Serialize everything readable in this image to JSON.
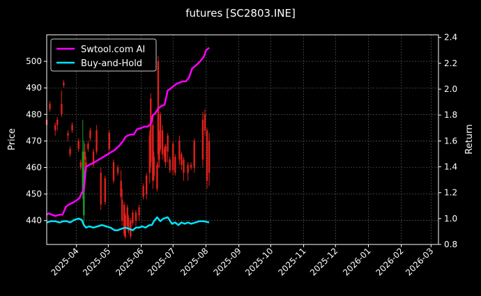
{
  "chart_data": {
    "type": "line",
    "title": "futures [SC2803.INE]",
    "ylabel": "Price",
    "y2label": "Return",
    "ylim": [
      431,
      510
    ],
    "y2lim": [
      0.8,
      2.42
    ],
    "xlim": [
      "2025-03-04",
      "2026-03-08"
    ],
    "yticks": [
      440,
      450,
      460,
      470,
      480,
      490,
      500
    ],
    "y2ticks": [
      "0.8",
      "1.0",
      "1.2",
      "1.4",
      "1.6",
      "1.8",
      "2.0",
      "2.2",
      "2.4"
    ],
    "xticks": [
      {
        "date": "2025-04-01",
        "label": "2025-04"
      },
      {
        "date": "2025-05-01",
        "label": "2025-05"
      },
      {
        "date": "2025-06-01",
        "label": "2025-06"
      },
      {
        "date": "2025-07-01",
        "label": "2025-07"
      },
      {
        "date": "2025-08-01",
        "label": "2025-08"
      },
      {
        "date": "2025-09-01",
        "label": "2025-09"
      },
      {
        "date": "2025-10-01",
        "label": "2025-10"
      },
      {
        "date": "2025-11-01",
        "label": "2025-11"
      },
      {
        "date": "2025-12-01",
        "label": "2025-12"
      },
      {
        "date": "2026-01-01",
        "label": "2026-01"
      },
      {
        "date": "2026-02-01",
        "label": "2026-02"
      },
      {
        "date": "2026-03-01",
        "label": "2026-03"
      }
    ],
    "grid": true,
    "legend_position": "top-left",
    "series": [
      {
        "name": "Swtool.com AI",
        "color": "#ff00ff",
        "axis": "right",
        "x": [
          "2025-03-04",
          "2025-03-06",
          "2025-03-09",
          "2025-03-12",
          "2025-03-16",
          "2025-03-19",
          "2025-03-22",
          "2025-03-25",
          "2025-03-28",
          "2025-04-01",
          "2025-04-04",
          "2025-04-06",
          "2025-04-08",
          "2025-04-10",
          "2025-04-12",
          "2025-04-14",
          "2025-04-17",
          "2025-04-21",
          "2025-04-25",
          "2025-04-29",
          "2025-05-03",
          "2025-05-07",
          "2025-05-11",
          "2025-05-15",
          "2025-05-17",
          "2025-05-19",
          "2025-05-22",
          "2025-05-25",
          "2025-05-28",
          "2025-06-01",
          "2025-06-04",
          "2025-06-07",
          "2025-06-10",
          "2025-06-12",
          "2025-06-14",
          "2025-06-17",
          "2025-06-20",
          "2025-06-23",
          "2025-06-26",
          "2025-06-28",
          "2025-07-01",
          "2025-07-04",
          "2025-07-07",
          "2025-07-10",
          "2025-07-13",
          "2025-07-16",
          "2025-07-19",
          "2025-07-22",
          "2025-07-26",
          "2025-07-30",
          "2025-08-01",
          "2025-08-04"
        ],
        "values": [
          1.03,
          1.04,
          1.03,
          1.02,
          1.03,
          1.03,
          1.09,
          1.11,
          1.12,
          1.14,
          1.16,
          1.2,
          1.22,
          1.4,
          1.41,
          1.42,
          1.43,
          1.45,
          1.47,
          1.49,
          1.51,
          1.53,
          1.56,
          1.6,
          1.63,
          1.64,
          1.65,
          1.65,
          1.69,
          1.7,
          1.71,
          1.71,
          1.73,
          1.8,
          1.81,
          1.85,
          1.87,
          1.88,
          1.99,
          2.0,
          2.02,
          2.04,
          2.05,
          2.06,
          2.06,
          2.09,
          2.16,
          2.18,
          2.21,
          2.25,
          2.3,
          2.32
        ]
      },
      {
        "name": "Buy-and-Hold",
        "color": "#00e5ff",
        "axis": "right",
        "x": [
          "2025-03-04",
          "2025-03-08",
          "2025-03-12",
          "2025-03-16",
          "2025-03-20",
          "2025-03-23",
          "2025-03-26",
          "2025-03-30",
          "2025-04-03",
          "2025-04-06",
          "2025-04-08",
          "2025-04-10",
          "2025-04-13",
          "2025-04-17",
          "2025-04-21",
          "2025-04-25",
          "2025-04-29",
          "2025-05-03",
          "2025-05-07",
          "2025-05-10",
          "2025-05-13",
          "2025-05-17",
          "2025-05-21",
          "2025-05-24",
          "2025-05-27",
          "2025-05-30",
          "2025-06-02",
          "2025-06-05",
          "2025-06-09",
          "2025-06-11",
          "2025-06-13",
          "2025-06-16",
          "2025-06-19",
          "2025-06-22",
          "2025-06-26",
          "2025-06-30",
          "2025-07-03",
          "2025-07-06",
          "2025-07-09",
          "2025-07-12",
          "2025-07-15",
          "2025-07-18",
          "2025-07-22",
          "2025-07-26",
          "2025-07-30",
          "2025-08-04"
        ],
        "values": [
          0.97,
          0.98,
          0.98,
          0.97,
          0.98,
          0.98,
          0.97,
          0.99,
          1.0,
          0.99,
          0.95,
          0.93,
          0.94,
          0.93,
          0.94,
          0.95,
          0.94,
          0.93,
          0.91,
          0.91,
          0.92,
          0.93,
          0.92,
          0.91,
          0.93,
          0.93,
          0.94,
          0.93,
          0.95,
          0.95,
          0.98,
          1.01,
          0.98,
          1.0,
          1.01,
          0.96,
          0.97,
          0.95,
          0.97,
          0.96,
          0.97,
          0.96,
          0.97,
          0.98,
          0.98,
          0.97
        ]
      }
    ],
    "candles": {
      "dates": [
        "2025-03-04",
        "2025-03-07",
        "2025-03-12",
        "2025-03-14",
        "2025-03-18",
        "2025-03-20",
        "2025-03-24",
        "2025-03-26",
        "2025-03-28",
        "2025-04-03",
        "2025-04-05",
        "2025-04-07",
        "2025-04-08",
        "2025-04-09",
        "2025-04-10",
        "2025-04-12",
        "2025-04-14",
        "2025-04-17",
        "2025-04-20",
        "2025-04-24",
        "2025-04-28",
        "2025-05-02",
        "2025-05-06",
        "2025-05-10",
        "2025-05-13",
        "2025-05-14",
        "2025-05-16",
        "2025-05-17",
        "2025-05-19",
        "2025-05-20",
        "2025-05-22",
        "2025-05-24",
        "2025-05-27",
        "2025-05-30",
        "2025-06-03",
        "2025-06-06",
        "2025-06-09",
        "2025-06-10",
        "2025-06-12",
        "2025-06-13",
        "2025-06-16",
        "2025-06-17",
        "2025-06-18",
        "2025-06-19",
        "2025-06-21",
        "2025-06-23",
        "2025-06-24",
        "2025-06-26",
        "2025-06-28",
        "2025-07-01",
        "2025-07-03",
        "2025-07-07",
        "2025-07-09",
        "2025-07-11",
        "2025-07-15",
        "2025-07-18",
        "2025-07-21",
        "2025-07-29",
        "2025-07-31",
        "2025-08-02",
        "2025-08-04"
      ],
      "open": [
        478,
        484,
        476,
        478,
        484,
        492,
        473,
        467,
        476,
        470,
        462,
        450,
        442,
        466,
        462,
        469,
        474,
        466,
        474,
        458,
        456,
        473,
        462,
        460,
        455,
        448,
        446,
        442,
        445,
        441,
        440,
        443,
        443,
        445,
        453,
        457,
        472,
        486,
        476,
        464,
        461,
        500,
        472,
        480,
        474,
        467,
        468,
        472,
        463,
        469,
        464,
        470,
        465,
        463,
        461,
        461,
        470,
        478,
        480,
        474,
        470
      ],
      "high": [
        479,
        485,
        477,
        479,
        489,
        493,
        474,
        468,
        477,
        471,
        463,
        478,
        470,
        469,
        464,
        470,
        475,
        467,
        476,
        460,
        457,
        474,
        463,
        461,
        459,
        452,
        447,
        443,
        446,
        442,
        441,
        444,
        444,
        446,
        454,
        458,
        474,
        488,
        480,
        466,
        462,
        502,
        474,
        481,
        476,
        468,
        469,
        473,
        464,
        470,
        465,
        472,
        466,
        464,
        462,
        462,
        471,
        481,
        482,
        475,
        473
      ],
      "low": [
        475,
        481,
        472,
        474,
        479,
        490,
        470,
        464,
        473,
        466,
        459,
        448,
        439,
        458,
        458,
        466,
        470,
        460,
        465,
        444,
        446,
        466,
        454,
        457,
        448,
        438,
        434,
        433,
        437,
        435,
        433,
        438,
        438,
        440,
        448,
        448,
        454,
        460,
        452,
        455,
        451,
        460,
        460,
        466,
        463,
        462,
        460,
        462,
        458,
        457,
        457,
        461,
        459,
        455,
        455,
        459,
        458,
        460,
        472,
        452,
        453
      ],
      "close": [
        476,
        482,
        474,
        476,
        480,
        491,
        472,
        465,
        474,
        467,
        460,
        466,
        459,
        463,
        459,
        467,
        471,
        461,
        466,
        446,
        447,
        467,
        455,
        458,
        449,
        440,
        435,
        434,
        438,
        436,
        434,
        439,
        440,
        442,
        449,
        450,
        458,
        462,
        455,
        457,
        452,
        465,
        463,
        467,
        465,
        464,
        462,
        466,
        459,
        459,
        458,
        463,
        461,
        458,
        458,
        460,
        460,
        463,
        474,
        455,
        458
      ]
    }
  }
}
